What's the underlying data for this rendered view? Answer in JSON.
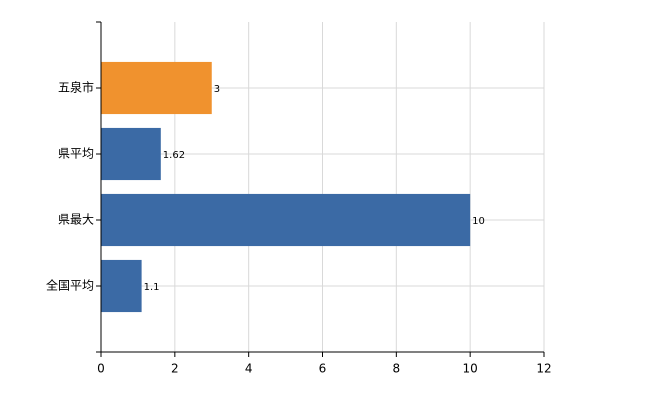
{
  "chart_data": {
    "type": "barh",
    "categories": [
      "五泉市",
      "県平均",
      "県最大",
      "全国平均"
    ],
    "values": [
      3,
      1.62,
      10,
      1.1
    ],
    "colors": [
      "#f0922e",
      "#3b6aa5",
      "#3b6aa5",
      "#3b6aa5"
    ],
    "xlim": [
      0,
      12
    ],
    "xticks": [
      0,
      2,
      4,
      6,
      8,
      10,
      12
    ],
    "grid": true
  }
}
